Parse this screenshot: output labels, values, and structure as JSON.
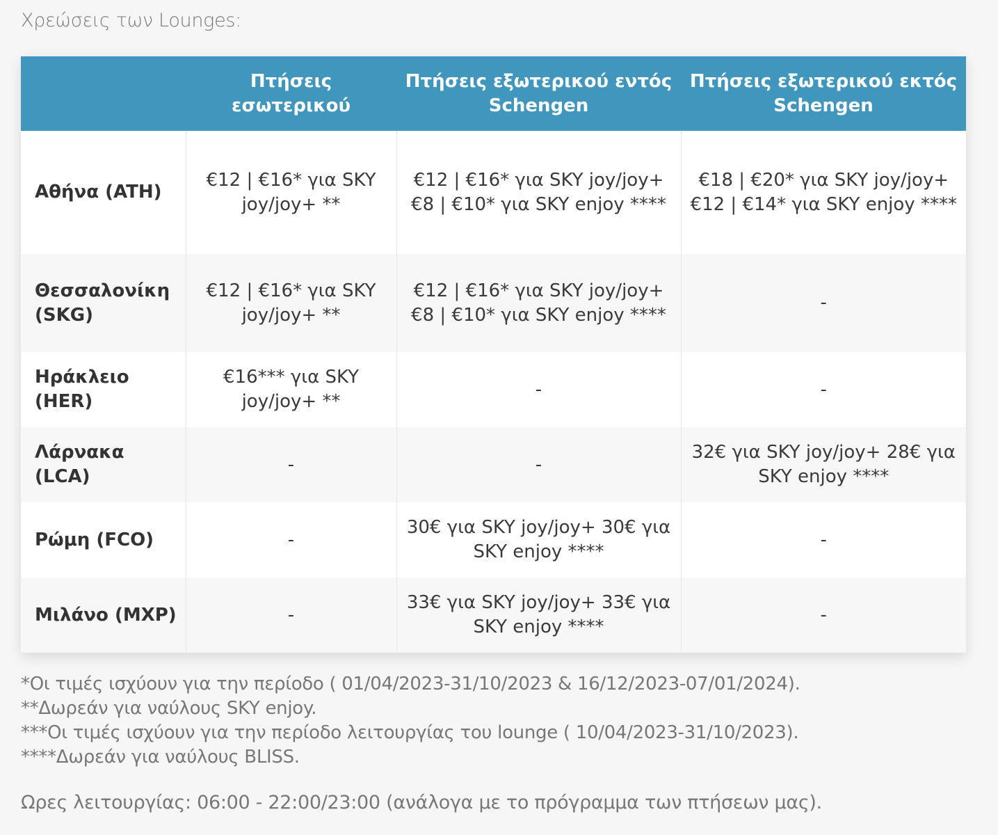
{
  "intro": "Χρεώσεις των Lounges:",
  "table": {
    "headers": [
      "",
      "Πτήσεις εσωτερικού",
      "Πτήσεις εξωτερικού εντός Schengen",
      "Πτήσεις εξωτερικού εκτός Schengen"
    ],
    "rows": [
      {
        "airport": "Αθήνα (ATH)",
        "cells": [
          "€12 | €16* για SKY joy/joy+ **",
          "€12 | €16* για SKY joy/joy+ €8 | €10* για SKY enjoy ****",
          "€18 | €20* για SKY joy/joy+ €12 | €14* για SKY enjoy ****"
        ]
      },
      {
        "airport": "Θεσσαλονίκη (SKG)",
        "cells": [
          "€12 | €16* για SKY joy/joy+ **",
          "€12 | €16* για SKY joy/joy+ €8 | €10* για SKY enjoy ****",
          "-"
        ]
      },
      {
        "airport": "Ηράκλειο (HER)",
        "cells": [
          "€16*** για SKY joy/joy+ **",
          "-",
          "-"
        ]
      },
      {
        "airport": "Λάρνακα (LCA)",
        "cells": [
          "-",
          "-",
          "32€ για SKY joy/joy+ 28€ για SKY enjoy ****"
        ]
      },
      {
        "airport": "Ρώμη (FCO)",
        "cells": [
          "-",
          "30€ για SKY joy/joy+ 30€ για SKY enjoy ****",
          "-"
        ]
      },
      {
        "airport": "Μιλάνο (MXP)",
        "cells": [
          "-",
          "33€ για SKY joy/joy+ 33€ για SKY enjoy ****",
          "-"
        ]
      }
    ]
  },
  "footnotes": [
    "*Οι τιμές ισχύουν για την περίοδο ( 01/04/2023-31/10/2023 & 16/12/2023-07/01/2024).",
    "**Δωρεάν για ναύλους SKY enjoy.",
    "***Οι τιμές ισχύουν για την περίοδο λειτουργίας του lounge ( 10/04/2023-31/10/2023).",
    "****Δωρεάν για ναύλους BLISS."
  ],
  "hours": "Ωρες λειτουργίας: 06:00 - 22:00/23:00 (ανάλογα με το πρόγραμμα των πτήσεων μας).",
  "colors": {
    "header_bg": "#4196bd",
    "header_text": "#ffffff"
  }
}
